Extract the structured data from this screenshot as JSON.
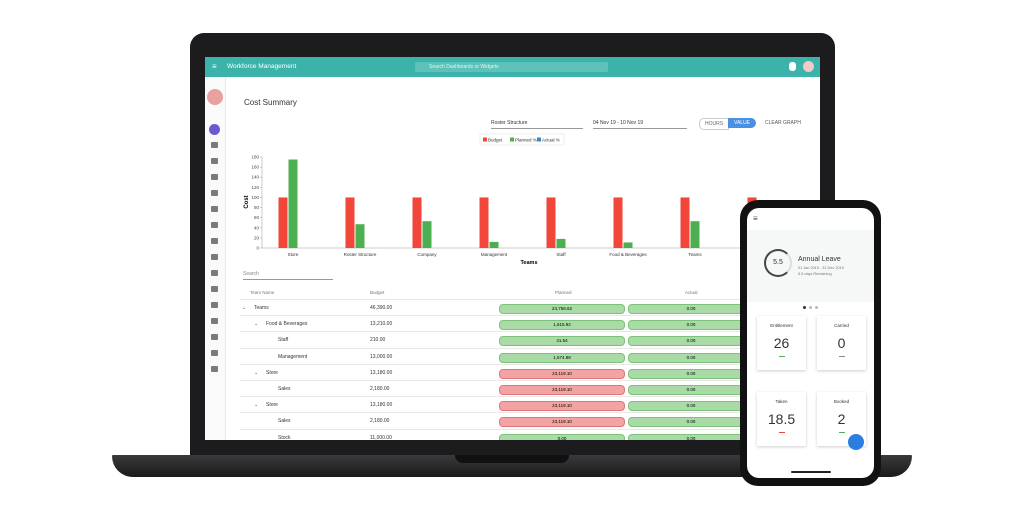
{
  "app": {
    "title": "Workforce Management",
    "search_placeholder": "Search Dashboards or Widgets"
  },
  "page": {
    "title": "Cost Summary",
    "filter": "Roster Structure",
    "date_range": "04 Nov 19 - 10 Nov 19",
    "toggle": [
      "HOURS",
      "VALUE"
    ],
    "clear": "CLEAR GRAPH",
    "search": "Search"
  },
  "chart_data": {
    "type": "bar",
    "x_label": "Teams",
    "y_label": "Cost",
    "categories": [
      "Store",
      "Roster Structure",
      "Company",
      "Management",
      "Staff",
      "Food & Beverages",
      "Teams",
      null
    ],
    "series": [
      {
        "name": "Budget",
        "color": "#f2463a",
        "values": [
          100,
          100,
          100,
          100,
          100,
          100,
          100,
          100
        ]
      },
      {
        "name": "Planned %",
        "color": "#4caf50",
        "values": [
          175,
          47,
          53,
          12,
          18,
          11,
          53,
          null
        ]
      },
      {
        "name": "Actual %",
        "color": "#3f86c9",
        "values": [
          0,
          0,
          0,
          0,
          0,
          0,
          0,
          null
        ]
      }
    ],
    "ylim": [
      0,
      180
    ],
    "yticks": [
      0,
      20,
      40,
      60,
      80,
      100,
      120,
      140,
      160,
      180
    ],
    "grid": false,
    "legend": "top"
  },
  "table": {
    "columns": [
      "Team Name",
      "Budget",
      "Planned",
      "Actual"
    ],
    "rows": [
      [
        "Teams",
        "46,390.00",
        "24,758.62",
        "0.00"
      ],
      [
        "Food & Beverages",
        "13,210.00",
        "1,615.92",
        "0.00"
      ],
      [
        "Staff",
        "210.00",
        "41.54",
        "0.00"
      ],
      [
        "Management",
        "13,000.00",
        "1,574.88",
        "0.00"
      ],
      [
        "Store",
        "13,180.00",
        "23,119.10",
        "0.00"
      ],
      [
        "Sales",
        "2,180.00",
        "23,119.10",
        "0.00"
      ],
      [
        "Store",
        "13,180.00",
        "23,119.10",
        "0.00"
      ],
      [
        "Sales",
        "2,180.00",
        "23,119.10",
        "0.00"
      ],
      [
        "Stock",
        "11,000.00",
        "0.00",
        "0.00"
      ]
    ]
  },
  "phone": {
    "title": "Annual Leave",
    "gauge": "5.5",
    "period": "01 Jan 2019 - 31 Dec 2019",
    "remaining": "5.5 days Remaining",
    "cards": [
      {
        "label": "Entitlement",
        "value": 26
      },
      {
        "label": "Carried",
        "value": 0
      },
      {
        "label": "Taken",
        "value": 18.5
      },
      {
        "label": "Booked",
        "value": 2
      }
    ]
  }
}
